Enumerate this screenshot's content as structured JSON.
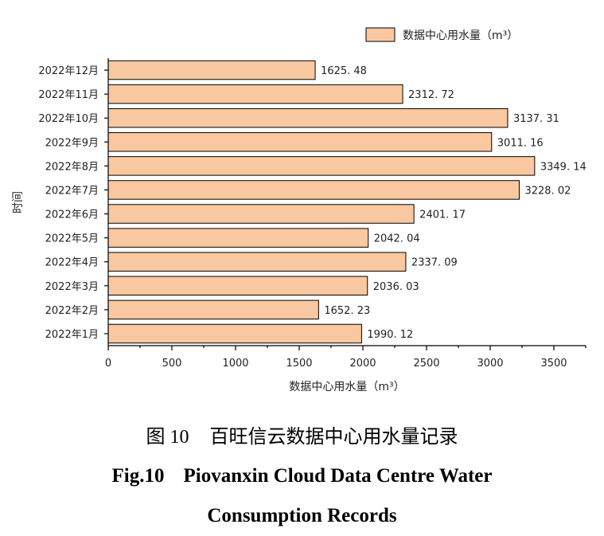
{
  "chart_data": {
    "type": "bar",
    "orientation": "horizontal",
    "categories": [
      "2022年1月",
      "2022年2月",
      "2022年3月",
      "2022年4月",
      "2022年5月",
      "2022年6月",
      "2022年7月",
      "2022年8月",
      "2022年9月",
      "2022年10月",
      "2022年11月",
      "2022年12月"
    ],
    "values": [
      1990.12,
      1652.23,
      2036.03,
      2337.09,
      2042.04,
      2401.17,
      3228.02,
      3349.14,
      3011.16,
      3137.31,
      2312.72,
      1625.48
    ],
    "value_labels": [
      "1990. 12",
      "1652. 23",
      "2036. 03",
      "2337. 09",
      "2042. 04",
      "2401. 17",
      "3228. 02",
      "3349. 14",
      "3011. 16",
      "3137. 31",
      "2312. 72",
      "1625. 48"
    ],
    "series_name": "数据中心用水量（m³）",
    "xlabel": "数据中心用水量（m³）",
    "ylabel": "时间",
    "xlim": [
      0,
      3750
    ],
    "xticks": [
      0,
      500,
      1000,
      1500,
      2000,
      2500,
      3000,
      3500
    ],
    "legend_position": "top-right",
    "grid": false,
    "bar_color": "#f9c8a0",
    "bar_edge_color": "#000000"
  },
  "caption": {
    "zh_fig_no": "图 10",
    "zh_title": "百旺信云数据中心用水量记录",
    "en_fig_no": "Fig.10",
    "en_title_line1": "Piovanxin Cloud Data Centre Water",
    "en_title_line2": "Consumption Records"
  }
}
